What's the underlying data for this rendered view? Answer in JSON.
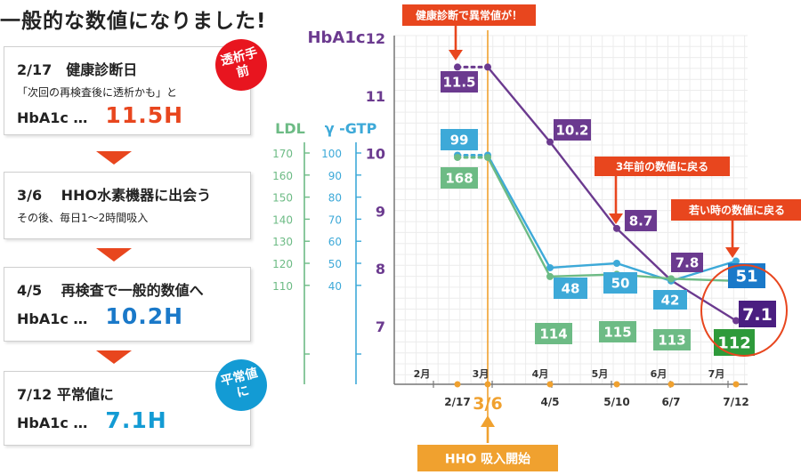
{
  "headline": "一般的な数値になりました!",
  "cards": [
    {
      "line1": "2/17　健康診断日",
      "line2": "「次回の再検査後に透析かも」と",
      "label": "HbA1c …",
      "value": "11.5H",
      "value_color": "#e8461e"
    },
    {
      "line1": "3/6　 HHO水素機器に出会う",
      "line2": "その後、毎日1〜2時間吸入"
    },
    {
      "line1": "4/5　 再検査で一般的数値へ",
      "label": "HbA1c …",
      "value": "10.2H",
      "value_color": "#1a79c9"
    },
    {
      "line1": "7/12  平常値に",
      "label": "HbA1c …",
      "value": "7.1H",
      "value_color": "#139bd4"
    }
  ],
  "badges": {
    "top": "透析手前",
    "bottom": "平常値に"
  },
  "colors": {
    "hba1c": "#6b3a8f",
    "ldl": "#6dbb85",
    "gtp": "#3da9d8",
    "accent": "#e8461e",
    "orange": "#f0a12f",
    "green_box": "#2e9a3a",
    "blue_box": "#1a79c9",
    "purple_box": "#4a1e80"
  },
  "chart_data": {
    "type": "line",
    "axes": {
      "hba1c": {
        "label": "HbA1c",
        "ticks": [
          "12",
          "11",
          "10",
          "9",
          "8",
          "7"
        ],
        "range": [
          6.5,
          12
        ]
      },
      "ldl": {
        "label": "LDL",
        "ticks": [
          "170",
          "160",
          "150",
          "140",
          "130",
          "120",
          "110"
        ]
      },
      "gtp": {
        "label": "γ -GTP",
        "ticks": [
          "100",
          "90",
          "80",
          "70",
          "60",
          "50",
          "40"
        ]
      }
    },
    "month_labels": [
      "2月",
      "3月",
      "4月",
      "5月",
      "6月",
      "7月"
    ],
    "date_labels": [
      "2/17",
      "3/6",
      "4/5",
      "5/10",
      "6/7",
      "7/12"
    ],
    "series": [
      {
        "name": "HbA1c",
        "points": [
          {
            "x": "2/17",
            "y": 11.5
          },
          {
            "x": "3/6",
            "y": 11.5
          },
          {
            "x": "4/5",
            "y": 10.2
          },
          {
            "x": "5/10",
            "y": 8.7
          },
          {
            "x": "6/7",
            "y": 7.8
          },
          {
            "x": "7/12",
            "y": 7.1
          }
        ],
        "labels": [
          "11.5",
          "10.2",
          "8.7",
          "7.8",
          "7.1"
        ]
      },
      {
        "name": "γ -GTP",
        "points": [
          {
            "x": "2/17",
            "y": 99
          },
          {
            "x": "3/6",
            "y": 99
          },
          {
            "x": "4/5",
            "y": 48
          },
          {
            "x": "5/10",
            "y": 50
          },
          {
            "x": "6/7",
            "y": 42
          },
          {
            "x": "7/12",
            "y": 51
          }
        ],
        "labels": [
          "99",
          "48",
          "50",
          "42",
          "51"
        ]
      },
      {
        "name": "LDL",
        "points": [
          {
            "x": "2/17",
            "y": 168
          },
          {
            "x": "3/6",
            "y": 168
          },
          {
            "x": "4/5",
            "y": 114
          },
          {
            "x": "5/10",
            "y": 115
          },
          {
            "x": "6/7",
            "y": 113
          },
          {
            "x": "7/12",
            "y": 112
          }
        ],
        "labels": [
          "168",
          "114",
          "115",
          "113",
          "112"
        ]
      }
    ],
    "annotations": [
      "健康診断で異常値が！",
      "3年前の数値に戻る",
      "若い時の数値に戻る",
      "HHO 吸入開始"
    ],
    "start_date_label": "3/6"
  }
}
